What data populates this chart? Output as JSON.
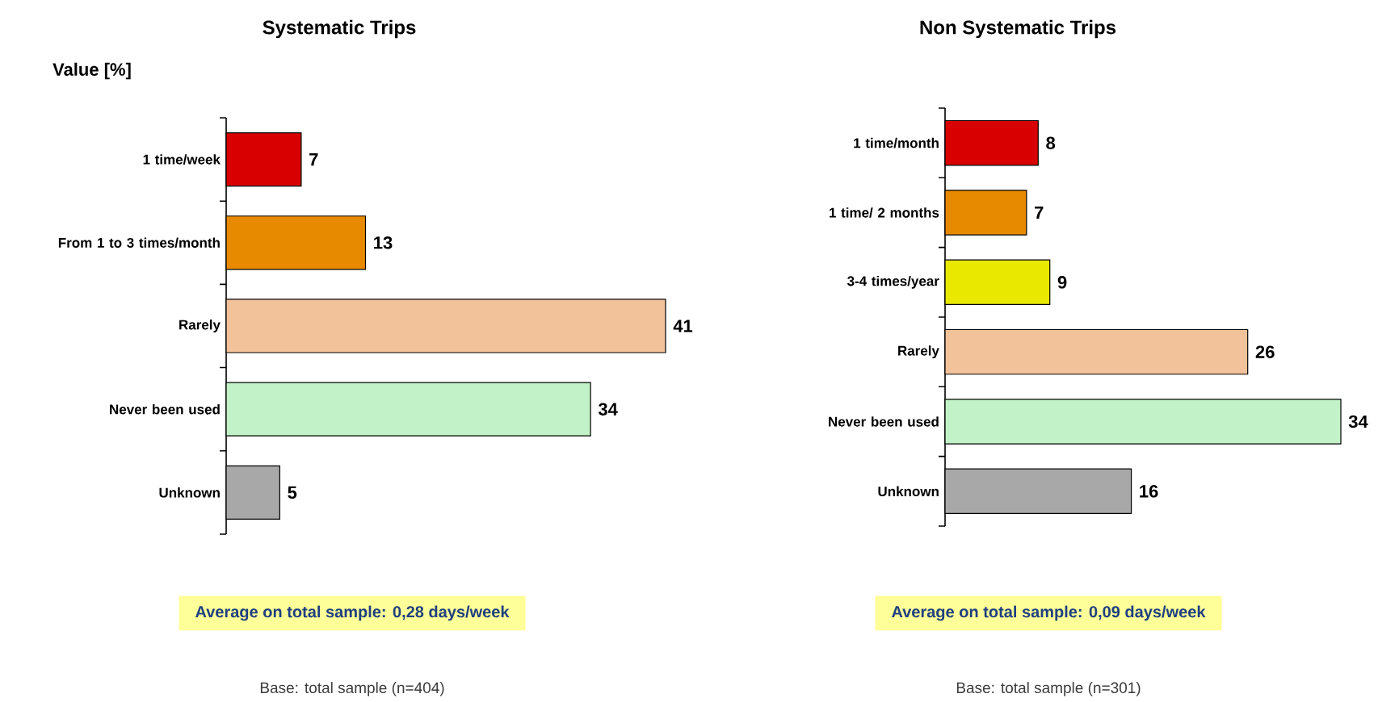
{
  "chart_data": [
    {
      "type": "bar",
      "orientation": "horizontal",
      "title": "Systematic Trips",
      "xlabel": "Value [%]",
      "categories": [
        "1 time/week",
        "From 1 to 3 times/month",
        "Rarely",
        "Never been used",
        "Unknown"
      ],
      "values": [
        7,
        13,
        41,
        34,
        5
      ],
      "colors": [
        "#d80000",
        "#e88a00",
        "#f2c29a",
        "#c2f2c8",
        "#a8a8a8"
      ],
      "data_labels": true,
      "annotations": [
        "Average on total sample: 0,28 days/week",
        "Base: total sample (n=404)"
      ]
    },
    {
      "type": "bar",
      "orientation": "horizontal",
      "title": "Non Systematic Trips",
      "categories": [
        "1 time/month",
        "1 time/ 2 months",
        "3-4 times/year",
        "Rarely",
        "Never been used",
        "Unknown"
      ],
      "values": [
        8,
        7,
        9,
        26,
        34,
        16
      ],
      "colors": [
        "#d80000",
        "#e88a00",
        "#e8e800",
        "#f2c29a",
        "#c2f2c8",
        "#a8a8a8"
      ],
      "data_labels": true,
      "annotations": [
        "Average on total sample: 0,09 days/week",
        "Base: total sample (n=301)"
      ]
    }
  ]
}
